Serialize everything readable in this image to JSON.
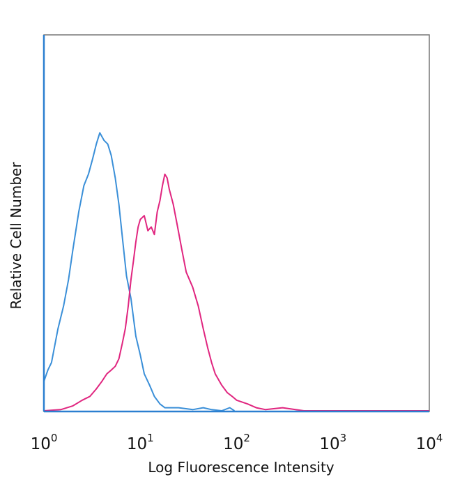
{
  "chart_data": {
    "type": "line",
    "xlabel": "Log Fluorescence Intensity",
    "ylabel": "Relative Cell Number",
    "x_scale": "log",
    "xlim": [
      1,
      10000
    ],
    "ylim": [
      0,
      100
    ],
    "grid": false,
    "legend": "none",
    "x_ticks": [
      {
        "value": 1,
        "base": "10",
        "exp": "0"
      },
      {
        "value": 10,
        "base": "10",
        "exp": "1"
      },
      {
        "value": 100,
        "base": "10",
        "exp": "2"
      },
      {
        "value": 1000,
        "base": "10",
        "exp": "3"
      },
      {
        "value": 10000,
        "base": "10",
        "exp": "4"
      }
    ],
    "series": [
      {
        "color": "#3a8fd8",
        "x": [
          1.0,
          1.1,
          1.2,
          1.4,
          1.6,
          1.8,
          2.0,
          2.3,
          2.6,
          2.9,
          3.2,
          3.5,
          3.8,
          4.2,
          4.6,
          5.0,
          5.5,
          6.0,
          6.6,
          7.2,
          8.0,
          9.0,
          10.0,
          11.0,
          12.5,
          14.0,
          16.0,
          18.0,
          20.0,
          25.0,
          35.0,
          45.0,
          55.0,
          70.0,
          85.0,
          95.0
        ],
        "y": [
          8.0,
          11.0,
          13.0,
          22.0,
          28.0,
          35.0,
          43.0,
          53.0,
          60.0,
          63.0,
          67.0,
          71.0,
          74.0,
          72.0,
          71.0,
          68.0,
          62.0,
          55.0,
          45.0,
          36.0,
          30.0,
          20.0,
          15.0,
          10.0,
          7.0,
          4.0,
          2.0,
          1.0,
          1.0,
          1.0,
          0.5,
          1.0,
          0.5,
          0.0,
          1.0,
          0.0
        ]
      },
      {
        "color": "#e0257f",
        "x": [
          1.0,
          1.5,
          2.0,
          2.5,
          3.0,
          3.5,
          4.0,
          4.5,
          5.0,
          5.5,
          6.0,
          6.5,
          7.0,
          7.5,
          8.0,
          8.5,
          9.0,
          9.5,
          10.0,
          11.0,
          12.0,
          13.0,
          14.0,
          15.0,
          16.0,
          17.0,
          18.0,
          19.0,
          20.0,
          22.0,
          24.0,
          27.0,
          30.0,
          35.0,
          40.0,
          45.0,
          50.0,
          55.0,
          60.0,
          70.0,
          80.0,
          90.0,
          100.0,
          130.0,
          160.0,
          200.0,
          300.0,
          500.0,
          1000.0,
          3000.0,
          6000.0,
          10000.0
        ],
        "y": [
          0.0,
          0.5,
          1.5,
          3.0,
          4.0,
          6.0,
          8.0,
          10.0,
          11.0,
          12.0,
          14.0,
          18.0,
          22.0,
          28.0,
          35.0,
          40.0,
          45.0,
          49.0,
          51.0,
          52.0,
          48.0,
          49.0,
          47.0,
          53.0,
          56.0,
          60.0,
          63.0,
          62.0,
          59.0,
          55.0,
          50.0,
          43.0,
          37.0,
          33.0,
          28.0,
          22.0,
          17.0,
          13.0,
          10.0,
          7.0,
          5.0,
          4.0,
          3.0,
          2.0,
          1.0,
          0.5,
          1.0,
          0.0,
          0.0,
          0.0,
          0.0,
          0.0
        ]
      }
    ]
  }
}
